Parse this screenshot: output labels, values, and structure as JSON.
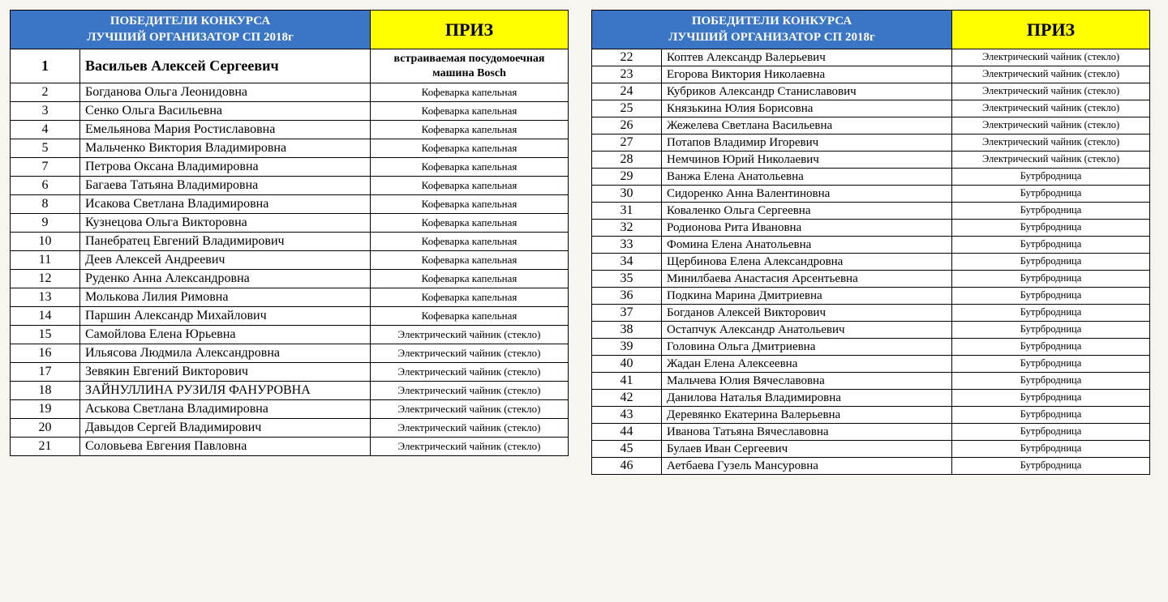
{
  "header": {
    "title_line1": "ПОБЕДИТЕЛИ КОНКУРСА",
    "title_line2": "ЛУЧШИЙ ОРГАНИЗАТОР СП 2018г",
    "prize_label": "ПРИЗ"
  },
  "left_rows": [
    {
      "n": "1",
      "name": "Васильев Алексей Сергеевич",
      "prize": "встраиваемая посудомоечная машина Bosch",
      "first": true
    },
    {
      "n": "2",
      "name": "Богданова Ольга Леонидовна",
      "prize": "Кофеварка капельная"
    },
    {
      "n": "3",
      "name": "Сенко Ольга Васильевна",
      "prize": "Кофеварка капельная"
    },
    {
      "n": "4",
      "name": "Емельянова Мария Ростиславовна",
      "prize": "Кофеварка капельная"
    },
    {
      "n": "5",
      "name": "Мальченко Виктория Владимировна",
      "prize": "Кофеварка капельная"
    },
    {
      "n": "7",
      "name": "Петрова Оксана Владимировна",
      "prize": "Кофеварка капельная"
    },
    {
      "n": "6",
      "name": "Багаева Татьяна Владимировна",
      "prize": "Кофеварка капельная"
    },
    {
      "n": "8",
      "name": "Исакова Светлана Владимировна",
      "prize": "Кофеварка капельная"
    },
    {
      "n": "9",
      "name": "Кузнецова Ольга Викторовна",
      "prize": "Кофеварка капельная"
    },
    {
      "n": "10",
      "name": "Панебратец Евгений Владимирович",
      "prize": "Кофеварка капельная"
    },
    {
      "n": "11",
      "name": "Деев Алексей Андреевич",
      "prize": "Кофеварка капельная"
    },
    {
      "n": "12",
      "name": "Руденко Анна Александровна",
      "prize": "Кофеварка капельная"
    },
    {
      "n": "13",
      "name": "Молькова Лилия Римовна",
      "prize": "Кофеварка капельная"
    },
    {
      "n": "14",
      "name": "Паршин Александр Михайлович",
      "prize": "Кофеварка капельная"
    },
    {
      "n": "15",
      "name": "Самойлова Елена Юрьевна",
      "prize": "Электрический чайник (стекло)"
    },
    {
      "n": "16",
      "name": "Ильясова Людмила Александровна",
      "prize": "Электрический чайник (стекло)"
    },
    {
      "n": "17",
      "name": "Зевякин Евгений Викторович",
      "prize": "Электрический чайник (стекло)"
    },
    {
      "n": "18",
      "name": "ЗАЙНУЛЛИНА РУЗИЛЯ ФАНУРОВНА",
      "prize": "Электрический чайник (стекло)"
    },
    {
      "n": "19",
      "name": "Аськова Светлана Владимировна",
      "prize": "Электрический чайник (стекло)"
    },
    {
      "n": "20",
      "name": "Давыдов Сергей Владимирович",
      "prize": "Электрический чайник (стекло)"
    },
    {
      "n": "21",
      "name": "Соловьева Евгения Павловна",
      "prize": "Электрический чайник (стекло)"
    }
  ],
  "right_rows": [
    {
      "n": "22",
      "name": "Коптев Александр Валерьевич",
      "prize": "Электрический чайник (стекло)"
    },
    {
      "n": "23",
      "name": "Егорова Виктория Николаевна",
      "prize": "Электрический чайник (стекло)"
    },
    {
      "n": "24",
      "name": "Кубриков Александр Станиславович",
      "prize": "Электрический чайник (стекло)"
    },
    {
      "n": "25",
      "name": "Князькина Юлия Борисовна",
      "prize": "Электрический чайник (стекло)"
    },
    {
      "n": "26",
      "name": "Жежелева Светлана Васильевна",
      "prize": "Электрический чайник (стекло)"
    },
    {
      "n": "27",
      "name": "Потапов Владимир Игоревич",
      "prize": "Электрический чайник (стекло)"
    },
    {
      "n": "28",
      "name": "Немчинов Юрий Николаевич",
      "prize": "Электрический чайник (стекло)"
    },
    {
      "n": "29",
      "name": "Ванжа Елена Анатольевна",
      "prize": "Бутрбродница"
    },
    {
      "n": "30",
      "name": "Сидоренко Анна Валентиновна",
      "prize": "Бутрбродница"
    },
    {
      "n": "31",
      "name": "Коваленко Ольга Сергеевна",
      "prize": "Бутрбродница"
    },
    {
      "n": "32",
      "name": "Родионова Рита Ивановна",
      "prize": "Бутрбродница"
    },
    {
      "n": "33",
      "name": "Фомина Елена Анатольевна",
      "prize": "Бутрбродница"
    },
    {
      "n": "34",
      "name": "Щербинова Елена Александровна",
      "prize": "Бутрбродница"
    },
    {
      "n": "35",
      "name": "Минилбаева Анастасия Арсентьевна",
      "prize": "Бутрбродница"
    },
    {
      "n": "36",
      "name": "Подкина Марина Дмитриевна",
      "prize": "Бутрбродница"
    },
    {
      "n": "37",
      "name": "Богданов Алексей Викторович",
      "prize": "Бутрбродница"
    },
    {
      "n": "38",
      "name": "Остапчук Александр Анатольевич",
      "prize": "Бутрбродница"
    },
    {
      "n": "39",
      "name": "Головина Ольга Дмитриевна",
      "prize": "Бутрбродница"
    },
    {
      "n": "40",
      "name": "Жадан Елена Алексеевна",
      "prize": "Бутрбродница"
    },
    {
      "n": "41",
      "name": "Мальчева Юлия Вячеславовна",
      "prize": "Бутрбродница"
    },
    {
      "n": "42",
      "name": "Данилова Наталья Владимировна",
      "prize": "Бутрбродница"
    },
    {
      "n": "43",
      "name": "Деревянко Екатерина Валерьевна",
      "prize": "Бутрбродница"
    },
    {
      "n": "44",
      "name": "Иванова Татьяна Вячеславовна",
      "prize": "Бутрбродница"
    },
    {
      "n": "45",
      "name": "Булаев Иван Сергеевич",
      "prize": "Бутрбродница"
    },
    {
      "n": "46",
      "name": "Аетбаева Гузель Мансуровна",
      "prize": "Бутрбродница"
    }
  ]
}
